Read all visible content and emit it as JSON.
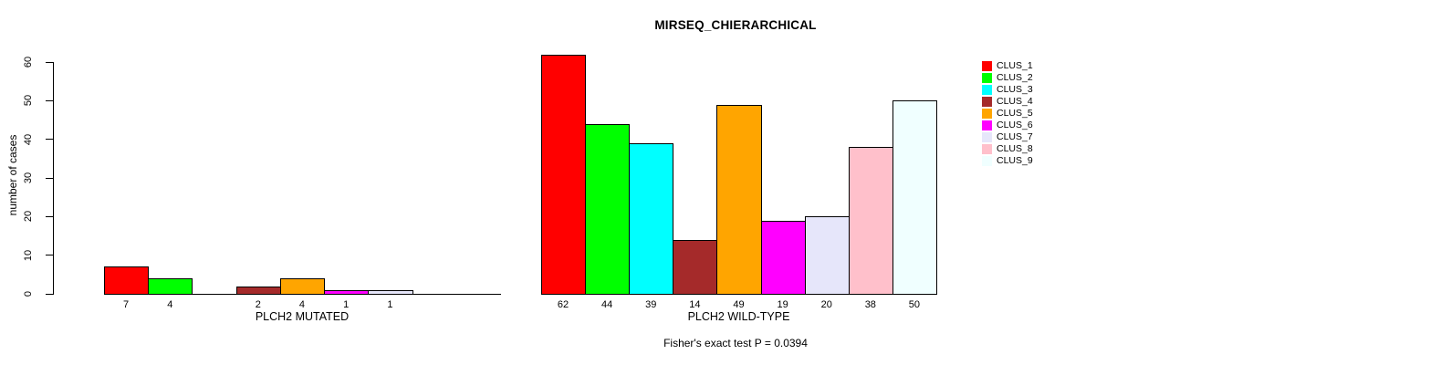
{
  "title": "MIRSEQ_CHIERARCHICAL",
  "caption": "Fisher's exact test P = 0.0394",
  "y_axis_label": "number of cases",
  "chart_data": {
    "type": "bar",
    "title": "MIRSEQ_CHIERARCHICAL",
    "ylabel": "number of cases",
    "xlabel": "",
    "ylim": [
      0,
      60
    ],
    "yticks": [
      0,
      10,
      20,
      30,
      40,
      50,
      60
    ],
    "grid": false,
    "legend_position": "right",
    "categories": [
      "CLUS_1",
      "CLUS_2",
      "CLUS_3",
      "CLUS_4",
      "CLUS_5",
      "CLUS_6",
      "CLUS_7",
      "CLUS_8",
      "CLUS_9"
    ],
    "colors": [
      "#FF0000",
      "#00FF00",
      "#00FFFF",
      "#A52A2A",
      "#FFA500",
      "#FF00FF",
      "#E6E6FA",
      "#FFC0CB",
      "#F0FFFF"
    ],
    "bar_border_color": "#000000",
    "groups": [
      {
        "label": "PLCH2 MUTATED",
        "values": [
          7,
          4,
          0,
          2,
          4,
          1,
          1,
          0,
          0
        ]
      },
      {
        "label": "PLCH2 WILD-TYPE",
        "values": [
          62,
          44,
          39,
          14,
          49,
          19,
          20,
          38,
          50
        ]
      }
    ],
    "value_labels_shown_only_for_nonzero": true,
    "annotation": "Fisher's exact test P = 0.0394"
  }
}
